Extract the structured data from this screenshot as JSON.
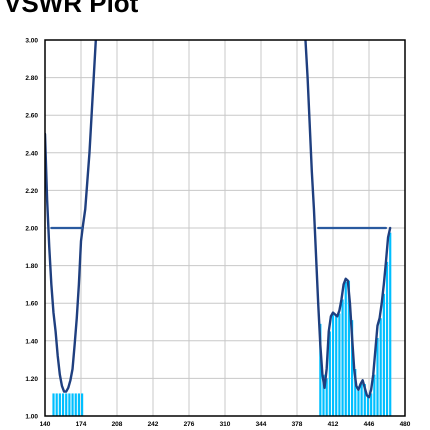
{
  "chart_data": {
    "type": "line",
    "title": "VSWR Plot",
    "xlabel": "",
    "ylabel": "",
    "xlim": [
      140,
      480
    ],
    "ylim": [
      1.0,
      3.0
    ],
    "grid": true,
    "x_ticks": [
      "140",
      "174",
      "208",
      "242",
      "276",
      "310",
      "344",
      "378",
      "412",
      "446",
      "480"
    ],
    "y_ticks": [
      "1.00",
      "1.20",
      "1.40",
      "1.60",
      "1.80",
      "2.00",
      "2.20",
      "2.40",
      "2.60",
      "2.80",
      "3.00"
    ],
    "series": [
      {
        "role": "vswr-curve",
        "color": "#1f3f7f",
        "segments": [
          [
            [
              140,
              2.5
            ],
            [
              142,
              2.15
            ],
            [
              144,
              1.9
            ],
            [
              146,
              1.7
            ],
            [
              148,
              1.55
            ],
            [
              150,
              1.45
            ],
            [
              152,
              1.32
            ],
            [
              154,
              1.22
            ],
            [
              156,
              1.16
            ],
            [
              158,
              1.13
            ],
            [
              160,
              1.13
            ],
            [
              162,
              1.15
            ],
            [
              164,
              1.19
            ],
            [
              166,
              1.25
            ],
            [
              168,
              1.38
            ],
            [
              170,
              1.52
            ],
            [
              172,
              1.7
            ],
            [
              174,
              1.93
            ],
            [
              176,
              2.02
            ],
            [
              178,
              2.1
            ],
            [
              180,
              2.25
            ],
            [
              182,
              2.4
            ],
            [
              184,
              2.6
            ],
            [
              186,
              2.8
            ],
            [
              188,
              3.0
            ]
          ],
          [
            [
              386,
              3.0
            ],
            [
              388,
              2.8
            ],
            [
              390,
              2.55
            ],
            [
              392,
              2.3
            ],
            [
              394,
              2.1
            ],
            [
              396,
              1.85
            ],
            [
              398,
              1.6
            ],
            [
              400,
              1.38
            ],
            [
              402,
              1.22
            ],
            [
              404,
              1.15
            ],
            [
              406,
              1.25
            ],
            [
              408,
              1.45
            ],
            [
              410,
              1.53
            ],
            [
              412,
              1.55
            ],
            [
              414,
              1.54
            ],
            [
              416,
              1.53
            ],
            [
              418,
              1.56
            ],
            [
              420,
              1.62
            ],
            [
              422,
              1.7
            ],
            [
              424,
              1.73
            ],
            [
              426,
              1.72
            ],
            [
              428,
              1.6
            ],
            [
              430,
              1.42
            ],
            [
              432,
              1.25
            ],
            [
              434,
              1.16
            ],
            [
              436,
              1.14
            ],
            [
              438,
              1.17
            ],
            [
              440,
              1.19
            ],
            [
              442,
              1.15
            ],
            [
              444,
              1.11
            ],
            [
              446,
              1.1
            ],
            [
              448,
              1.14
            ],
            [
              450,
              1.22
            ],
            [
              452,
              1.35
            ],
            [
              454,
              1.48
            ],
            [
              456,
              1.52
            ],
            [
              458,
              1.6
            ],
            [
              460,
              1.7
            ],
            [
              462,
              1.82
            ],
            [
              464,
              1.95
            ],
            [
              466,
              2.0
            ]
          ]
        ]
      },
      {
        "role": "limit-line",
        "color": "#2a5a9f",
        "segments": [
          [
            [
              146,
              2.0
            ],
            [
              175,
              2.0
            ]
          ],
          [
            [
              398,
              2.0
            ],
            [
              462,
              2.0
            ]
          ]
        ]
      }
    ],
    "regions": [
      {
        "x": [
          147,
          176
        ],
        "ceiling": 1.12,
        "fill": "#00bfff",
        "stripe_step": 3
      },
      {
        "x": [
          399,
          465
        ],
        "fill": "#00bfff",
        "stripe_step": 3,
        "follows": "vswr-curve"
      }
    ]
  }
}
